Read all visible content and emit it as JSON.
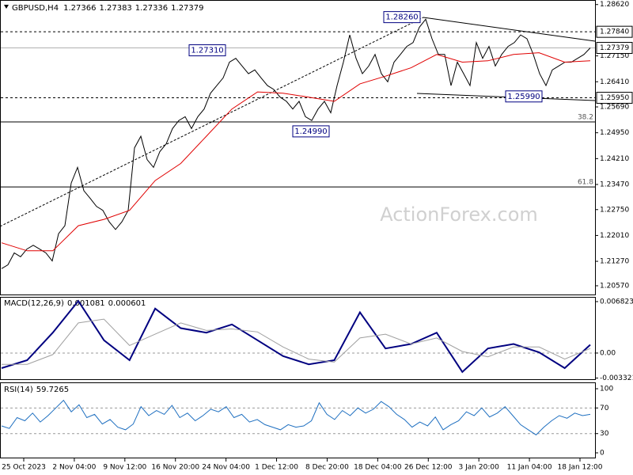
{
  "symbol": "GBPUSD,H4",
  "ohlc": [
    1.27366,
    1.27383,
    1.27336,
    1.27379
  ],
  "watermark": "ActionForex.com",
  "x_axis_labels": [
    "25 Oct 2023",
    "2 Nov 04:00",
    "9 Nov 12:00",
    "16 Nov 20:00",
    "24 Nov 04:00",
    "1 Dec 12:00",
    "8 Dec 20:00",
    "18 Dec 04:00",
    "26 Dec 12:00",
    "3 Jan 20:00",
    "11 Jan 04:00",
    "18 Jan 12:00"
  ],
  "chart_data": [
    {
      "type": "line",
      "ylim": [
        1.2032,
        1.2875
      ],
      "yticks": [
        {
          "value": 1.2862,
          "label": "1.28620"
        },
        {
          "value": 1.2715,
          "label": "1.27150"
        },
        {
          "value": 1.2641,
          "label": "1.26410"
        },
        {
          "value": 1.2569,
          "label": "1.25690"
        },
        {
          "value": 1.2495,
          "label": "1.24950"
        },
        {
          "value": 1.2421,
          "label": "1.24210"
        },
        {
          "value": 1.2347,
          "label": "1.23470"
        },
        {
          "value": 1.2275,
          "label": "1.22750"
        },
        {
          "value": 1.2201,
          "label": "1.22010"
        },
        {
          "value": 1.2127,
          "label": "1.21270"
        },
        {
          "value": 1.2057,
          "label": "1.20570"
        }
      ],
      "levels": [
        {
          "value": 1.2784,
          "label": "1.27840",
          "style": "dashed"
        },
        {
          "value": 1.27379,
          "style": "current"
        },
        {
          "value": 1.2595,
          "label": "1.25950",
          "style": "dashed"
        }
      ],
      "fib": [
        {
          "ratio": 38.2,
          "price": 1.2526
        },
        {
          "ratio": 61.8,
          "price": 1.234
        }
      ],
      "annotations": [
        {
          "value": 1.2826,
          "label": "1.28260"
        },
        {
          "value": 1.2731,
          "label": "1.27310"
        },
        {
          "value": 1.2499,
          "label": "1.24990"
        },
        {
          "value": 1.2599,
          "label": "1.25990"
        }
      ],
      "series": [
        {
          "name": "Price",
          "color": "#000000",
          "width": 1,
          "values": [
            1.2106,
            1.2117,
            1.2151,
            1.214,
            1.2162,
            1.2173,
            1.2162,
            1.2151,
            1.2128,
            1.2206,
            1.2229,
            1.2351,
            1.2396,
            1.2329,
            1.2307,
            1.2284,
            1.2273,
            1.224,
            1.2218,
            1.224,
            1.2273,
            1.2452,
            1.2485,
            1.2418,
            1.2396,
            1.2441,
            1.2463,
            1.2507,
            1.253,
            1.2541,
            1.2507,
            1.2541,
            1.2563,
            1.2608,
            1.263,
            1.2652,
            1.2697,
            1.2708,
            1.2686,
            1.2664,
            1.2675,
            1.2652,
            1.263,
            1.2619,
            1.2597,
            1.2585,
            1.2563,
            1.2585,
            1.2541,
            1.253,
            1.2563,
            1.2585,
            1.2552,
            1.263,
            1.2697,
            1.2775,
            1.2708,
            1.2664,
            1.2686,
            1.2719,
            1.2664,
            1.2641,
            1.2697,
            1.2719,
            1.2742,
            1.2753,
            1.2797,
            1.282,
            1.2764,
            1.2719,
            1.2719,
            1.263,
            1.2697,
            1.2664,
            1.263,
            1.2753,
            1.2708,
            1.2742,
            1.2686,
            1.2719,
            1.2742,
            1.2753,
            1.2775,
            1.2764,
            1.2719,
            1.2664,
            1.263,
            1.2675,
            1.2686,
            1.2697,
            1.2697,
            1.2708,
            1.2719,
            1.2738
          ]
        },
        {
          "name": "MA",
          "color": "#e00000",
          "width": 1,
          "values": [
            1.218,
            1.2157,
            1.2157,
            1.2229,
            1.2247,
            1.2273,
            1.2358,
            1.2407,
            1.2485,
            1.2563,
            1.2612,
            1.2608,
            1.2597,
            1.2585,
            1.2635,
            1.2657,
            1.2681,
            1.2719,
            1.2697,
            1.2701,
            1.2719,
            1.2724,
            1.2697,
            1.2701
          ]
        }
      ]
    },
    {
      "type": "line",
      "name": "MACD(12,26,9)",
      "header_values": [
        0.001081,
        0.000601
      ],
      "ylim": [
        -0.00347,
        0.00745
      ],
      "yticks": [
        0.006823,
        {
          "value": 0,
          "label": "0.00"
        },
        -0.003321
      ],
      "levels": [
        {
          "value": 0,
          "style": "dashed"
        }
      ],
      "series": [
        {
          "name": "MACD",
          "color": "#000080",
          "width": 2,
          "values": [
            -0.002,
            -0.00095,
            0.0027,
            0.0069,
            0.0017,
            -0.00095,
            0.0059,
            0.0033,
            0.0027,
            0.0038,
            0.0017,
            -0.0004,
            -0.0015,
            -0.00095,
            0.0054,
            0.0006,
            0.0012,
            0.0027,
            -0.0025,
            0.0006,
            0.0012,
            0.0001,
            -0.002,
            0.0011
          ]
        },
        {
          "name": "Signal",
          "color": "#a0a0a0",
          "width": 1,
          "values": [
            -0.0015,
            -0.0015,
            -0.0002,
            0.004,
            0.0045,
            0.001,
            0.0025,
            0.004,
            0.003,
            0.0032,
            0.0028,
            0.0008,
            -0.0008,
            -0.0012,
            0.002,
            0.0025,
            0.0012,
            0.002,
            0.0002,
            -0.0005,
            0.0008,
            0.0008,
            -0.0008,
            0.0006
          ]
        }
      ]
    },
    {
      "type": "line",
      "name": "RSI(14)",
      "header_values": [
        59.7265
      ],
      "ylim": [
        -7.4,
        109.9
      ],
      "yticks": [
        100,
        70,
        30,
        0
      ],
      "levels": [
        {
          "value": 70,
          "style": "dashed"
        },
        {
          "value": 30,
          "style": "dashed"
        }
      ],
      "series": [
        {
          "name": "RSI",
          "color": "#1e6fc0",
          "width": 1,
          "values": [
            42,
            38,
            55,
            50,
            62,
            48,
            58,
            70,
            82,
            64,
            75,
            55,
            60,
            45,
            52,
            40,
            36,
            45,
            72,
            58,
            66,
            60,
            74,
            55,
            62,
            50,
            58,
            68,
            64,
            72,
            55,
            60,
            48,
            52,
            44,
            40,
            36,
            44,
            40,
            42,
            50,
            78,
            60,
            52,
            66,
            58,
            70,
            62,
            68,
            80,
            72,
            60,
            52,
            40,
            48,
            42,
            56,
            36,
            44,
            50,
            64,
            58,
            70,
            56,
            62,
            72,
            58,
            44,
            36,
            28,
            40,
            50,
            58,
            54,
            62,
            58,
            60
          ]
        }
      ]
    }
  ]
}
